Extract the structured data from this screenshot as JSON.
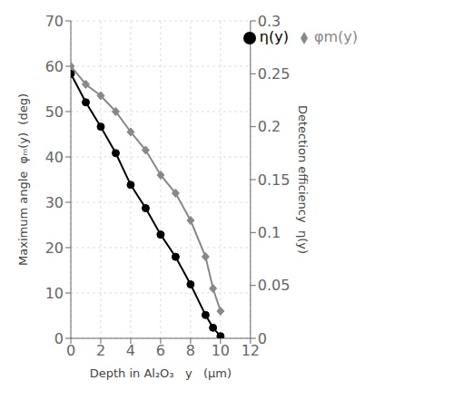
{
  "chart_data": {
    "type": "line",
    "x": [
      0,
      1,
      2,
      3,
      4,
      5,
      6,
      7,
      8,
      9,
      9.5,
      10
    ],
    "series": [
      {
        "name": "φm(y)",
        "color": "#888888",
        "marker": "diamond",
        "values": [
          60,
          56,
          53.5,
          50,
          45.5,
          41.5,
          36,
          32,
          26,
          18,
          11,
          6
        ]
      },
      {
        "name": "η(y)",
        "color": "#000000",
        "marker": "circle",
        "axis": "y2",
        "values": [
          0.25,
          0.223,
          0.2,
          0.175,
          0.145,
          0.123,
          0.098,
          0.077,
          0.051,
          0.022,
          0.01,
          0.002
        ]
      }
    ],
    "x_label": "Depth in Al₂O₃   y   (μm)",
    "y_label": "Maximum angle  φₘ(y)  (deg)",
    "y2_label": "Detection efficiency  η(y)",
    "xlim": [
      0,
      12
    ],
    "xticks": [
      0,
      2,
      4,
      6,
      8,
      10,
      12
    ],
    "ylim": [
      0,
      70
    ],
    "yticks": [
      0,
      10,
      20,
      30,
      40,
      50,
      60,
      70
    ],
    "y2lim": [
      0,
      0.3
    ],
    "y2ticks": [
      0,
      0.05,
      0.1,
      0.15,
      0.2,
      0.25,
      0.3
    ],
    "grid": true,
    "legend": "upper right"
  }
}
